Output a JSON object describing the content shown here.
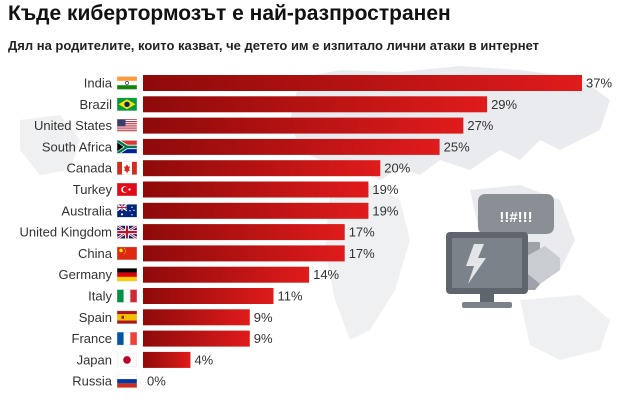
{
  "title": "Къде кибертормозът е най-разпространен",
  "subtitle": "Дял на родителите, които казват, че детето им е изпитало лични атаки в интернет",
  "chart_data": {
    "type": "bar",
    "orientation": "horizontal",
    "categories": [
      "India",
      "Brazil",
      "United States",
      "South Africa",
      "Canada",
      "Turkey",
      "Australia",
      "United Kingdom",
      "China",
      "Germany",
      "Italy",
      "Spain",
      "France",
      "Japan",
      "Russia"
    ],
    "values": [
      37,
      29,
      27,
      25,
      20,
      19,
      19,
      17,
      17,
      14,
      11,
      9,
      9,
      4,
      0
    ],
    "value_labels": [
      "37%",
      "29%",
      "27%",
      "25%",
      "20%",
      "19%",
      "19%",
      "17%",
      "17%",
      "14%",
      "11%",
      "9%",
      "9%",
      "4%",
      "0%"
    ],
    "flags": [
      "flag-india",
      "flag-brazil",
      "flag-usa",
      "flag-south-africa",
      "flag-canada",
      "flag-turkey",
      "flag-australia",
      "flag-uk",
      "flag-china",
      "flag-germany",
      "flag-italy",
      "flag-spain",
      "flag-france",
      "flag-japan",
      "flag-russia"
    ],
    "xlim": [
      0,
      37
    ],
    "grid": false,
    "legend": "none",
    "colors": {
      "bar_start": "#8e0a0a",
      "bar_end": "#e01b1b",
      "label": "#333333"
    },
    "illustration": {
      "icon": "cyberbullying-computer-icon",
      "bubble_text": "!!#!!!"
    }
  }
}
